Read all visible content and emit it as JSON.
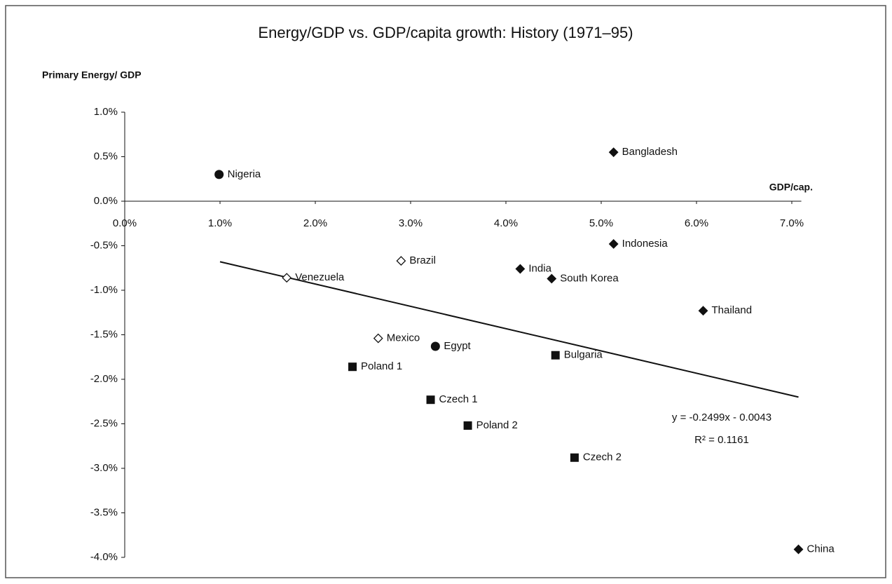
{
  "chart_data": {
    "type": "scatter",
    "title": "Energy/GDP vs. GDP/capita growth: History (1971–95)",
    "y_label": "Primary Energy/ GDP",
    "x_label": "GDP/cap.",
    "xlim": [
      0,
      7.1
    ],
    "ylim": [
      -4,
      1
    ],
    "xticks": [
      {
        "value": 0,
        "label": "0.0%"
      },
      {
        "value": 1,
        "label": "1.0%"
      },
      {
        "value": 2,
        "label": "2.0%"
      },
      {
        "value": 3,
        "label": "3.0%"
      },
      {
        "value": 4,
        "label": "4.0%"
      },
      {
        "value": 5,
        "label": "5.0%"
      },
      {
        "value": 6,
        "label": "6.0%"
      },
      {
        "value": 7,
        "label": "7.0%"
      }
    ],
    "yticks": [
      {
        "value": 1,
        "label": "1.0%"
      },
      {
        "value": 0.5,
        "label": "0.5%"
      },
      {
        "value": 0,
        "label": "0.0%"
      },
      {
        "value": -0.5,
        "label": "-0.5%"
      },
      {
        "value": -1,
        "label": "-1.0%"
      },
      {
        "value": -1.5,
        "label": "-1.5%"
      },
      {
        "value": -2,
        "label": "-2.0%"
      },
      {
        "value": -2.5,
        "label": "-2.5%"
      },
      {
        "value": -3,
        "label": "-3.0%"
      },
      {
        "value": -3.5,
        "label": "-3.5%"
      },
      {
        "value": -4,
        "label": "-4.0%"
      }
    ],
    "series": [
      {
        "marker": "circle",
        "color": "#111111",
        "labels": [
          "Nigeria",
          "Egypt"
        ],
        "x": [
          0.99,
          3.26
        ],
        "values": [
          0.3,
          -1.63
        ]
      },
      {
        "marker": "diamond",
        "color": "#111111",
        "labels": [
          "Bangladesh",
          "Indonesia",
          "India",
          "South Korea",
          "Thailand",
          "China"
        ],
        "x": [
          5.13,
          5.13,
          4.15,
          4.48,
          6.07,
          7.07
        ],
        "values": [
          0.55,
          -0.48,
          -0.76,
          -0.87,
          -1.23,
          -3.91
        ]
      },
      {
        "marker": "hollow-diamond",
        "color": "#111111",
        "labels": [
          "Brazil",
          "Venezuela",
          "Mexico"
        ],
        "x": [
          2.9,
          1.7,
          2.66
        ],
        "values": [
          -0.67,
          -0.86,
          -1.54
        ]
      },
      {
        "marker": "square",
        "color": "#111111",
        "labels": [
          "Bulgaria",
          "Poland 1",
          "Czech  1",
          "Poland 2",
          "Czech 2"
        ],
        "x": [
          4.52,
          2.39,
          3.21,
          3.6,
          4.72
        ],
        "values": [
          -1.73,
          -1.86,
          -2.23,
          -2.52,
          -2.88
        ]
      }
    ],
    "trendline": {
      "x": [
        1.0,
        7.07
      ],
      "values": [
        -0.68,
        -2.2
      ],
      "color": "#111111"
    },
    "equation": "y = -0.2499x - 0.0043",
    "r_squared": "R² = 0.1161"
  }
}
